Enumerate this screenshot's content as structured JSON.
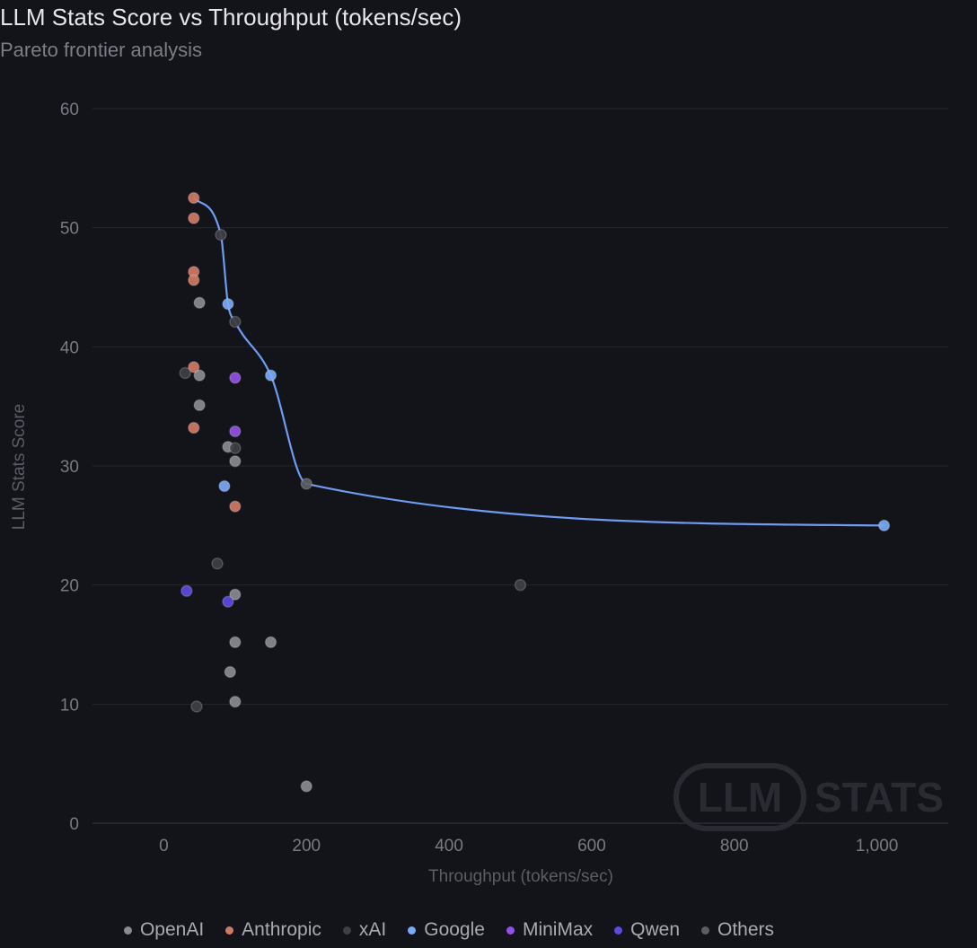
{
  "header": {
    "title": "LLM Stats Score vs Throughput (tokens/sec)",
    "subtitle": "Pareto frontier analysis"
  },
  "watermark": {
    "left": "LLM",
    "right": "STATS"
  },
  "colors": {
    "background": "#13131a",
    "grid": "#262630",
    "frontier": "#6f9cf0"
  },
  "chart_data": {
    "type": "scatter",
    "xlabel": "Throughput (tokens/sec)",
    "ylabel": "LLM Stats Score",
    "xlim": [
      -100,
      1100
    ],
    "ylim": [
      0,
      60
    ],
    "x_ticks": [
      0,
      200,
      400,
      600,
      800,
      1000
    ],
    "x_tick_labels": [
      "0",
      "200",
      "400",
      "600",
      "800",
      "1,000"
    ],
    "y_ticks": [
      0,
      10,
      20,
      30,
      40,
      50,
      60
    ],
    "y_tick_labels": [
      "0",
      "10",
      "20",
      "30",
      "40",
      "50",
      "60"
    ],
    "grid": true,
    "legend_position": "bottom",
    "series": [
      {
        "name": "OpenAI",
        "color": "#8a8a93",
        "points": [
          [
            50,
            43.7
          ],
          [
            50,
            37.6
          ],
          [
            50,
            35.1
          ],
          [
            90,
            31.6
          ],
          [
            100,
            30.4
          ],
          [
            100,
            19.2
          ],
          [
            100,
            15.2
          ],
          [
            150,
            15.2
          ],
          [
            93,
            12.7
          ],
          [
            100,
            10.2
          ],
          [
            200,
            3.1
          ]
        ]
      },
      {
        "name": "Anthropic",
        "color": "#d07a63",
        "points": [
          [
            42,
            52.5
          ],
          [
            42,
            50.8
          ],
          [
            42,
            46.3
          ],
          [
            42,
            45.6
          ],
          [
            42,
            38.3
          ],
          [
            42,
            33.2
          ],
          [
            100,
            26.6
          ]
        ]
      },
      {
        "name": "xAI",
        "color": "#3f3f48",
        "points": [
          [
            80,
            49.4
          ],
          [
            100,
            42.1
          ],
          [
            30,
            37.8
          ],
          [
            100,
            31.5
          ],
          [
            75,
            21.8
          ],
          [
            500,
            20.0
          ],
          [
            46,
            9.8
          ]
        ]
      },
      {
        "name": "Google",
        "color": "#7aa9f5",
        "points": [
          [
            90,
            43.6
          ],
          [
            150,
            37.6
          ],
          [
            85,
            28.3
          ],
          [
            1010,
            25.0
          ]
        ]
      },
      {
        "name": "MiniMax",
        "color": "#9250e6",
        "points": [
          [
            100,
            37.4
          ],
          [
            100,
            32.9
          ]
        ]
      },
      {
        "name": "Qwen",
        "color": "#5b4be0",
        "points": [
          [
            32,
            19.5
          ],
          [
            90,
            18.6
          ]
        ]
      },
      {
        "name": "Others",
        "color": "#5d5d66",
        "points": [
          [
            200,
            28.5
          ]
        ]
      }
    ],
    "pareto_frontier": [
      [
        42,
        52.5
      ],
      [
        80,
        49.4
      ],
      [
        90,
        43.6
      ],
      [
        100,
        42.1
      ],
      [
        150,
        37.6
      ],
      [
        200,
        28.5
      ],
      [
        1010,
        25.0
      ]
    ]
  }
}
